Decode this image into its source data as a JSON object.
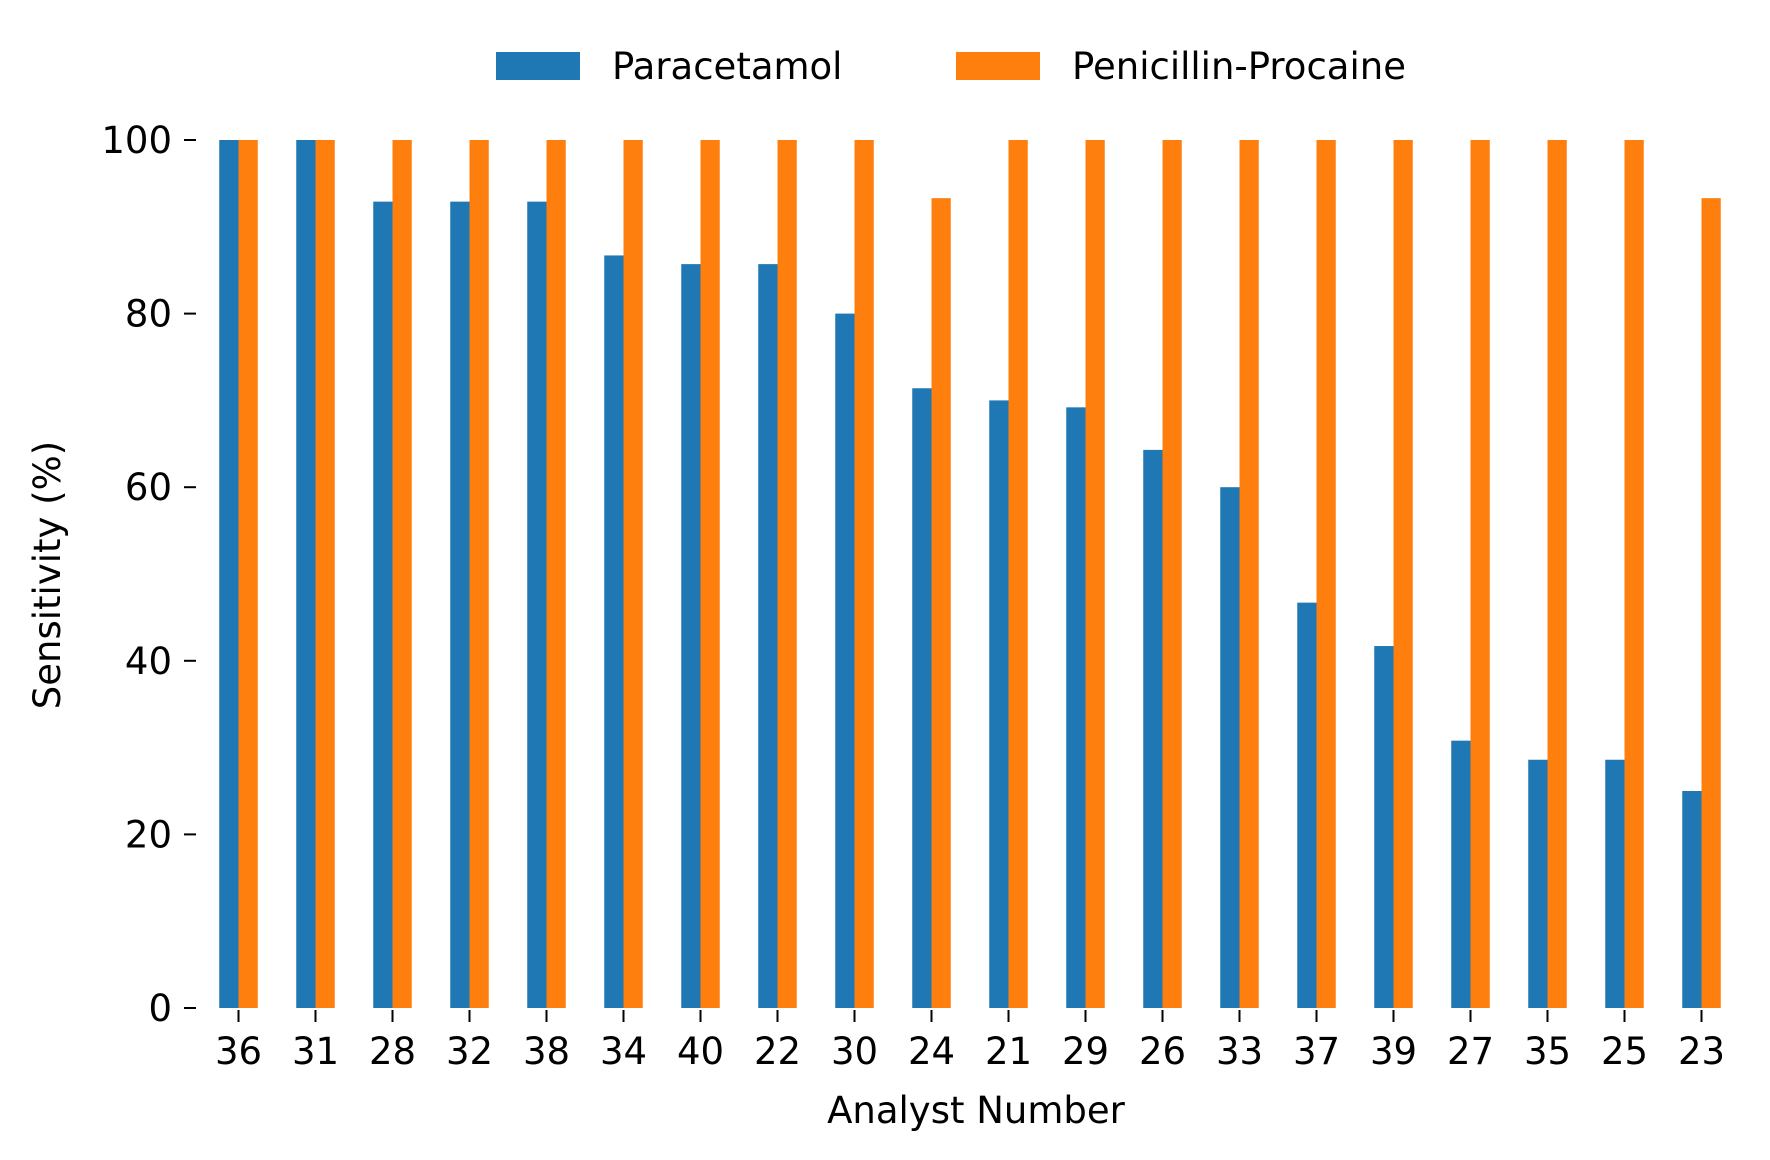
{
  "chart_data": {
    "type": "bar",
    "title": "",
    "xlabel": "Analyst Number",
    "ylabel": "Sensitivity (%)",
    "ylim": [
      0,
      100
    ],
    "yticks": [
      0,
      20,
      40,
      60,
      80,
      100
    ],
    "grid": false,
    "legend_position": "top-center",
    "categories": [
      "36",
      "31",
      "28",
      "32",
      "38",
      "34",
      "40",
      "22",
      "30",
      "24",
      "21",
      "29",
      "26",
      "33",
      "37",
      "39",
      "27",
      "35",
      "25",
      "23"
    ],
    "series": [
      {
        "name": "Paracetamol",
        "color": "#1f77b4",
        "values": [
          100,
          100,
          92.9,
          92.9,
          92.9,
          86.7,
          85.7,
          85.7,
          80.0,
          71.4,
          70.0,
          69.2,
          64.3,
          60.0,
          46.7,
          41.7,
          30.8,
          28.6,
          28.6,
          25.0
        ]
      },
      {
        "name": "Penicillin-Procaine",
        "color": "#ff7f0e",
        "values": [
          100,
          100,
          100,
          100,
          100,
          100,
          100,
          100,
          100,
          93.3,
          100,
          100,
          100,
          100,
          100,
          100,
          100,
          100,
          100,
          93.3
        ]
      }
    ]
  }
}
